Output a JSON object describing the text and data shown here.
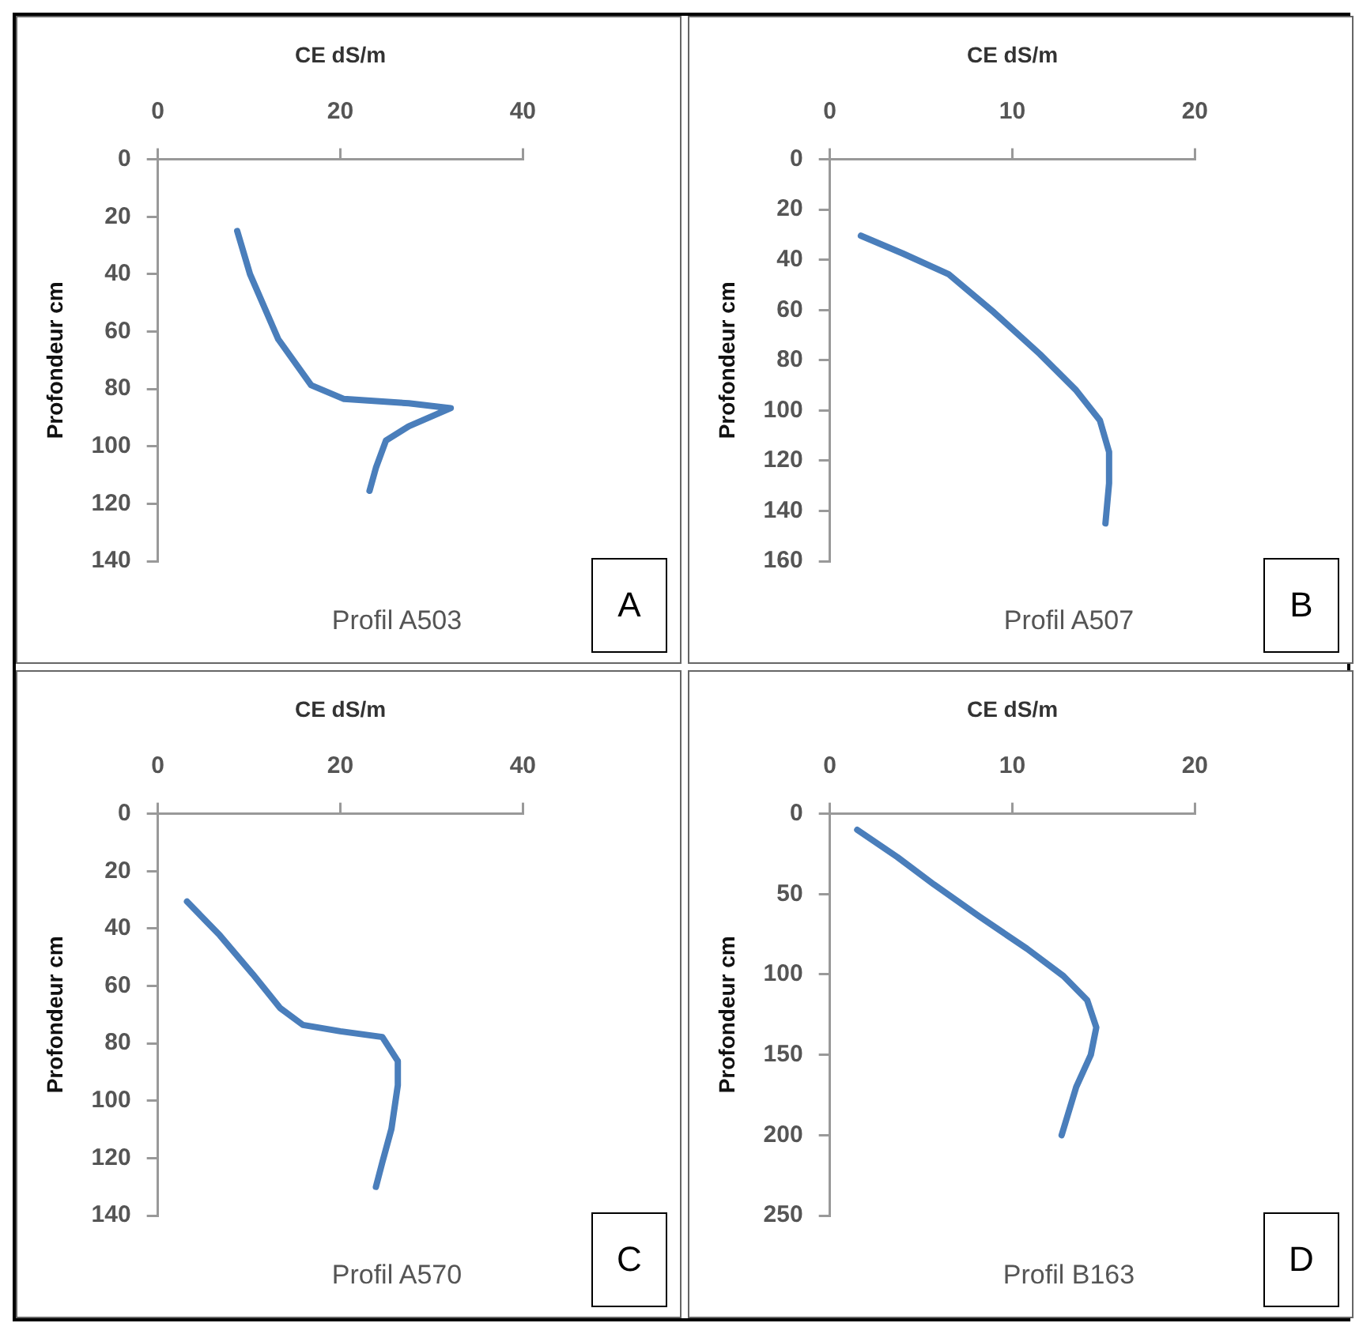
{
  "chart_data": [
    {
      "type": "line",
      "xlabel": "CE dS/m",
      "ylabel": "Profondeur cm",
      "annotations": [
        "Profil A503",
        "A"
      ],
      "color": "#4a7ebb",
      "xlim": [
        0,
        40
      ],
      "xticks": [
        0,
        20,
        40
      ],
      "ylim": [
        140,
        0
      ],
      "yticks": [
        0,
        20,
        40,
        60,
        80,
        100,
        120,
        140
      ],
      "x": [
        8.7,
        10.1,
        13.2,
        16.8,
        20.4,
        27.5,
        32.1,
        27.5,
        25,
        23.9,
        23.2
      ],
      "values": [
        25,
        40,
        62.7,
        78.7,
        83.5,
        85,
        86.7,
        93,
        98,
        107.5,
        115.5
      ]
    },
    {
      "type": "line",
      "xlabel": "CE dS/m",
      "ylabel": "Profondeur cm",
      "annotations": [
        "Profil A507",
        "B"
      ],
      "color": "#4a7ebb",
      "xlim": [
        0,
        20
      ],
      "xticks": [
        0,
        10,
        20
      ],
      "ylim": [
        160,
        0
      ],
      "yticks": [
        0,
        20,
        40,
        60,
        80,
        100,
        120,
        140,
        160
      ],
      "x": [
        1.7,
        4.0,
        6.5,
        9.0,
        11.5,
        13.5,
        14.8,
        15.3,
        15.3,
        15.1
      ],
      "values": [
        30.4,
        37.5,
        45.7,
        61,
        77.5,
        92,
        104,
        116.5,
        129,
        145
      ]
    },
    {
      "type": "line",
      "xlabel": "CE dS/m",
      "ylabel": "Profondeur cm",
      "annotations": [
        "Profil A570",
        "C"
      ],
      "color": "#4a7ebb",
      "xlim": [
        0,
        40
      ],
      "xticks": [
        0,
        20,
        40
      ],
      "ylim": [
        140,
        0
      ],
      "yticks": [
        0,
        20,
        40,
        60,
        80,
        100,
        120,
        140
      ],
      "x": [
        3.2,
        6.8,
        10.4,
        13.4,
        15.9,
        20,
        24.6,
        26.3,
        26.3,
        25.6,
        24.6,
        23.9
      ],
      "values": [
        30.6,
        42.4,
        55.9,
        67.7,
        73.6,
        75.8,
        77.8,
        86.2,
        94.6,
        109.8,
        121.5,
        130
      ]
    },
    {
      "type": "line",
      "xlabel": "CE dS/m",
      "ylabel": "Profondeur cm",
      "annotations": [
        "Profil B163",
        "D"
      ],
      "color": "#4a7ebb",
      "xlim": [
        0,
        20
      ],
      "xticks": [
        0,
        10,
        20
      ],
      "ylim": [
        250,
        0
      ],
      "yticks": [
        0,
        50,
        100,
        150,
        200,
        250
      ],
      "x": [
        1.5,
        3.7,
        5.7,
        8.2,
        10.8,
        12.8,
        14.1,
        14.6,
        14.3,
        13.5,
        12.7
      ],
      "values": [
        10,
        27,
        44,
        64,
        84,
        101,
        116,
        133,
        150,
        170,
        200
      ]
    }
  ]
}
